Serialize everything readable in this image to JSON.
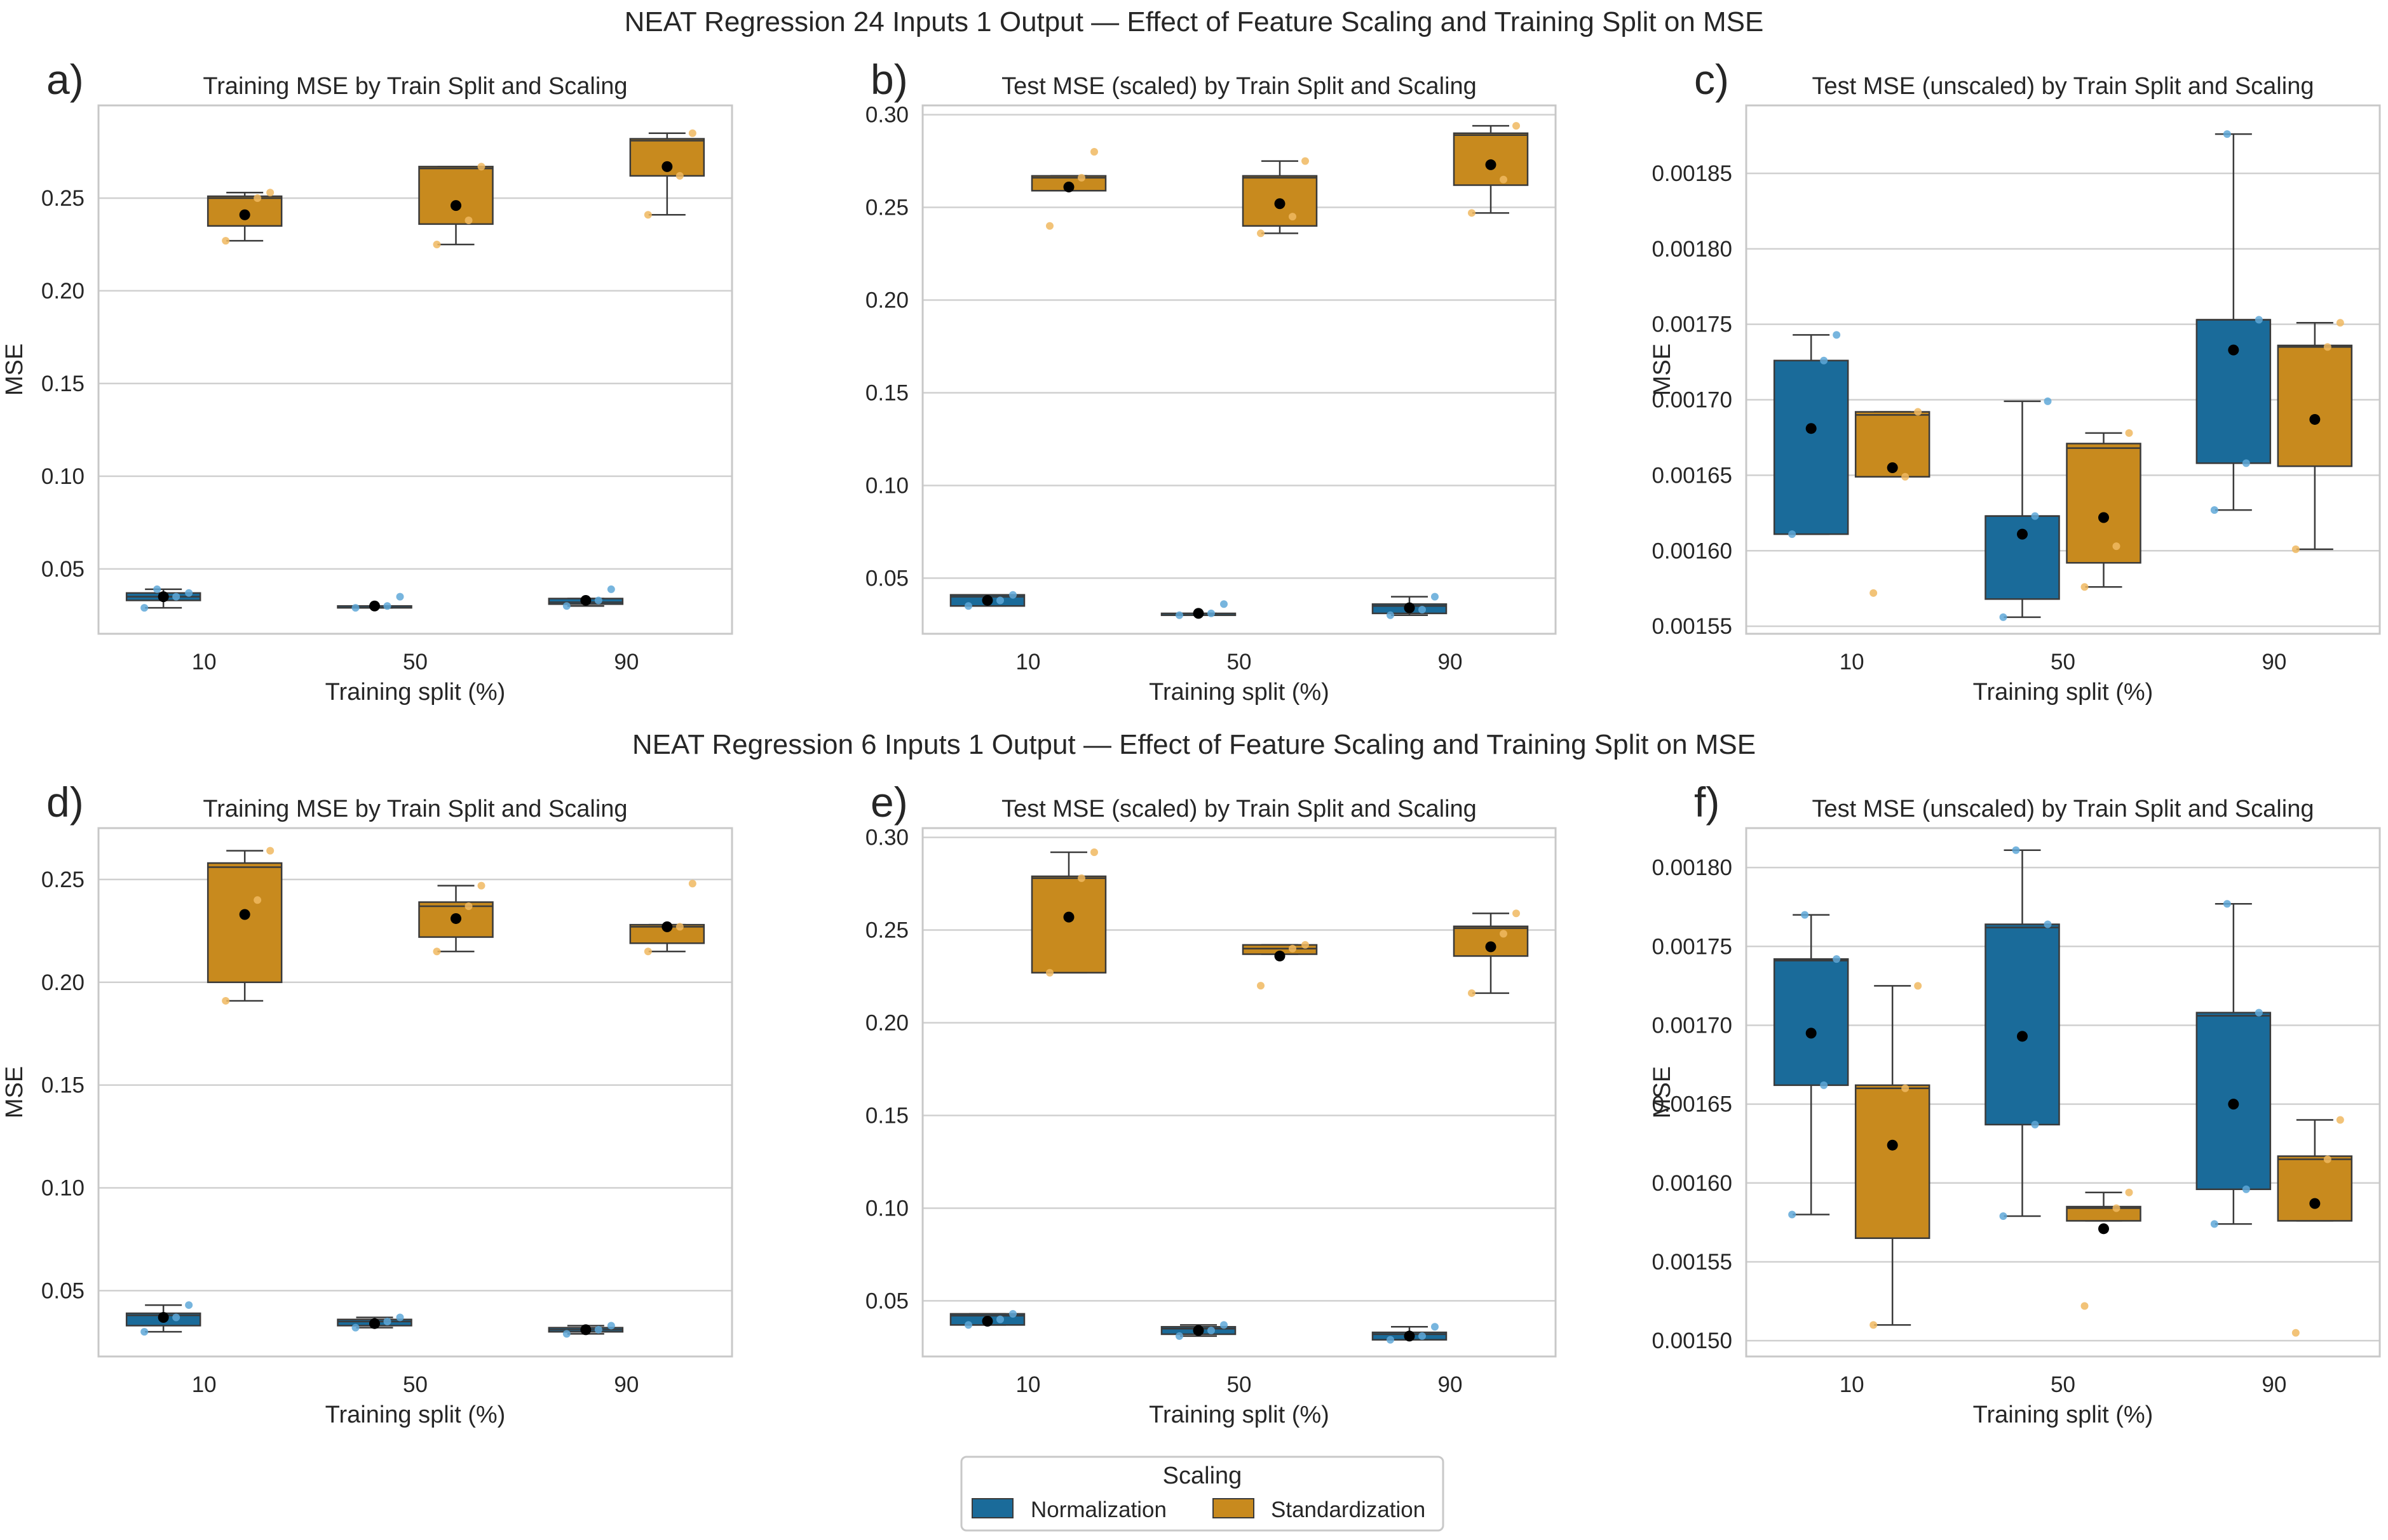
{
  "colors": {
    "normalization": "#1a6b9a",
    "standardization": "#c88a1e",
    "normalization_point": "#5fa8d8",
    "standardization_point": "#f0b860",
    "mean": "#000000"
  },
  "suptitles": [
    "NEAT Regression 24 Inputs 1 Output — Effect of Feature Scaling and Training Split on MSE",
    "NEAT Regression 6 Inputs 1 Output — Effect of Feature Scaling and Training Split on MSE"
  ],
  "legend": {
    "title": "Scaling",
    "entries": [
      "Normalization",
      "Standardization"
    ]
  },
  "chart_data": [
    {
      "type": "box",
      "panel": "a)",
      "title": "Training MSE by Train Split and Scaling",
      "xlabel": "Training split (%)",
      "ylabel": "MSE",
      "categories": [
        "10",
        "50",
        "90"
      ],
      "ylim": [
        0.015,
        0.3
      ],
      "yticks": [
        0.05,
        0.1,
        0.15,
        0.2,
        0.25
      ],
      "tick_labels": [
        "0.05",
        "0.10",
        "0.15",
        "0.20",
        "0.25"
      ],
      "series": [
        {
          "name": "Normalization",
          "boxes": [
            {
              "whislo": 0.029,
              "q1": 0.033,
              "med": 0.035,
              "q3": 0.037,
              "whishi": 0.039,
              "mean": 0.035,
              "points": [
                0.029,
                0.035,
                0.037,
                0.039
              ]
            },
            {
              "whislo": 0.029,
              "q1": 0.029,
              "med": 0.03,
              "q3": 0.03,
              "whishi": 0.03,
              "mean": 0.03,
              "points": [
                0.029,
                0.03,
                0.035
              ]
            },
            {
              "whislo": 0.03,
              "q1": 0.031,
              "med": 0.032,
              "q3": 0.034,
              "whishi": 0.034,
              "mean": 0.033,
              "points": [
                0.03,
                0.033,
                0.039
              ]
            }
          ]
        },
        {
          "name": "Standardization",
          "boxes": [
            {
              "whislo": 0.227,
              "q1": 0.235,
              "med": 0.25,
              "q3": 0.251,
              "whishi": 0.253,
              "mean": 0.241,
              "points": [
                0.227,
                0.25,
                0.253
              ]
            },
            {
              "whislo": 0.225,
              "q1": 0.236,
              "med": 0.266,
              "q3": 0.267,
              "whishi": 0.267,
              "mean": 0.246,
              "points": [
                0.225,
                0.238,
                0.267
              ]
            },
            {
              "whislo": 0.241,
              "q1": 0.262,
              "med": 0.281,
              "q3": 0.282,
              "whishi": 0.285,
              "mean": 0.267,
              "points": [
                0.241,
                0.262,
                0.285
              ]
            }
          ]
        }
      ]
    },
    {
      "type": "box",
      "panel": "b)",
      "title": "Test MSE (scaled) by Train Split and Scaling",
      "xlabel": "Training split (%)",
      "ylabel": "",
      "categories": [
        "10",
        "50",
        "90"
      ],
      "ylim": [
        0.02,
        0.305
      ],
      "yticks": [
        0.05,
        0.1,
        0.15,
        0.2,
        0.25,
        0.3
      ],
      "tick_labels": [
        "0.05",
        "0.10",
        "0.15",
        "0.20",
        "0.25",
        "0.30"
      ],
      "series": [
        {
          "name": "Normalization",
          "boxes": [
            {
              "whislo": 0.035,
              "q1": 0.035,
              "med": 0.04,
              "q3": 0.041,
              "whishi": 0.041,
              "mean": 0.038,
              "points": [
                0.035,
                0.038,
                0.041
              ]
            },
            {
              "whislo": 0.03,
              "q1": 0.03,
              "med": 0.03,
              "q3": 0.031,
              "whishi": 0.031,
              "mean": 0.031,
              "points": [
                0.03,
                0.031,
                0.036
              ]
            },
            {
              "whislo": 0.03,
              "q1": 0.031,
              "med": 0.035,
              "q3": 0.036,
              "whishi": 0.04,
              "mean": 0.034,
              "points": [
                0.03,
                0.033,
                0.04
              ]
            }
          ]
        },
        {
          "name": "Standardization",
          "boxes": [
            {
              "whislo": 0.259,
              "q1": 0.259,
              "med": 0.266,
              "q3": 0.267,
              "whishi": 0.267,
              "mean": 0.261,
              "points": [
                0.24,
                0.266,
                0.28
              ]
            },
            {
              "whislo": 0.236,
              "q1": 0.24,
              "med": 0.266,
              "q3": 0.267,
              "whishi": 0.275,
              "mean": 0.252,
              "points": [
                0.236,
                0.245,
                0.275
              ]
            },
            {
              "whislo": 0.247,
              "q1": 0.262,
              "med": 0.289,
              "q3": 0.29,
              "whishi": 0.294,
              "mean": 0.273,
              "points": [
                0.247,
                0.265,
                0.294
              ]
            }
          ]
        }
      ]
    },
    {
      "type": "box",
      "panel": "c)",
      "title": "Test MSE (unscaled) by Train Split and Scaling",
      "xlabel": "Training split (%)",
      "ylabel": "MSE",
      "categories": [
        "10",
        "50",
        "90"
      ],
      "ylim": [
        0.001545,
        0.001895
      ],
      "yticks": [
        0.00155,
        0.0016,
        0.00165,
        0.0017,
        0.00175,
        0.0018,
        0.00185
      ],
      "tick_labels": [
        "0.00155",
        "0.00160",
        "0.00165",
        "0.00170",
        "0.00175",
        "0.00180",
        "0.00185"
      ],
      "series": [
        {
          "name": "Normalization",
          "boxes": [
            {
              "whislo": 0.001611,
              "q1": 0.001611,
              "med": 0.001726,
              "q3": 0.001726,
              "whishi": 0.001743,
              "mean": 0.001681,
              "points": [
                0.001611,
                0.001726,
                0.001743
              ]
            },
            {
              "whislo": 0.001556,
              "q1": 0.001568,
              "med": 0.001623,
              "q3": 0.001623,
              "whishi": 0.001699,
              "mean": 0.001611,
              "points": [
                0.001556,
                0.001623,
                0.001699
              ]
            },
            {
              "whislo": 0.001627,
              "q1": 0.001658,
              "med": 0.001753,
              "q3": 0.001753,
              "whishi": 0.001876,
              "mean": 0.001733,
              "points": [
                0.001627,
                0.001658,
                0.001753,
                0.001876
              ]
            }
          ]
        },
        {
          "name": "Standardization",
          "boxes": [
            {
              "whislo": 0.001649,
              "q1": 0.001649,
              "med": 0.00169,
              "q3": 0.001692,
              "whishi": 0.001692,
              "mean": 0.001655,
              "points": [
                0.001572,
                0.001649,
                0.001692
              ]
            },
            {
              "whislo": 0.001576,
              "q1": 0.001592,
              "med": 0.001668,
              "q3": 0.001671,
              "whishi": 0.001678,
              "mean": 0.001622,
              "points": [
                0.001576,
                0.001603,
                0.001678
              ]
            },
            {
              "whislo": 0.001601,
              "q1": 0.001656,
              "med": 0.001735,
              "q3": 0.001736,
              "whishi": 0.001751,
              "mean": 0.001687,
              "points": [
                0.001601,
                0.001735,
                0.001751
              ]
            }
          ]
        }
      ]
    },
    {
      "type": "box",
      "panel": "d)",
      "title": "Training MSE by Train Split and Scaling",
      "xlabel": "Training split (%)",
      "ylabel": "MSE",
      "categories": [
        "10",
        "50",
        "90"
      ],
      "ylim": [
        0.018,
        0.275
      ],
      "yticks": [
        0.05,
        0.1,
        0.15,
        0.2,
        0.25
      ],
      "tick_labels": [
        "0.05",
        "0.10",
        "0.15",
        "0.20",
        "0.25"
      ],
      "series": [
        {
          "name": "Normalization",
          "boxes": [
            {
              "whislo": 0.03,
              "q1": 0.033,
              "med": 0.038,
              "q3": 0.039,
              "whishi": 0.043,
              "mean": 0.037,
              "points": [
                0.03,
                0.037,
                0.043
              ]
            },
            {
              "whislo": 0.032,
              "q1": 0.033,
              "med": 0.035,
              "q3": 0.036,
              "whishi": 0.037,
              "mean": 0.034,
              "points": [
                0.032,
                0.035,
                0.037
              ]
            },
            {
              "whislo": 0.029,
              "q1": 0.03,
              "med": 0.031,
              "q3": 0.032,
              "whishi": 0.033,
              "mean": 0.031,
              "points": [
                0.029,
                0.031,
                0.033
              ]
            }
          ]
        },
        {
          "name": "Standardization",
          "boxes": [
            {
              "whislo": 0.191,
              "q1": 0.2,
              "med": 0.256,
              "q3": 0.258,
              "whishi": 0.264,
              "mean": 0.233,
              "points": [
                0.191,
                0.24,
                0.264
              ]
            },
            {
              "whislo": 0.215,
              "q1": 0.222,
              "med": 0.237,
              "q3": 0.239,
              "whishi": 0.247,
              "mean": 0.231,
              "points": [
                0.215,
                0.237,
                0.247
              ]
            },
            {
              "whislo": 0.215,
              "q1": 0.219,
              "med": 0.227,
              "q3": 0.228,
              "whishi": 0.228,
              "mean": 0.227,
              "points": [
                0.215,
                0.227,
                0.248
              ]
            }
          ]
        }
      ]
    },
    {
      "type": "box",
      "panel": "e)",
      "title": "Test MSE (scaled) by Train Split and Scaling",
      "xlabel": "Training split (%)",
      "ylabel": "",
      "categories": [
        "10",
        "50",
        "90"
      ],
      "ylim": [
        0.02,
        0.305
      ],
      "yticks": [
        0.05,
        0.1,
        0.15,
        0.2,
        0.25,
        0.3
      ],
      "tick_labels": [
        "0.05",
        "0.10",
        "0.15",
        "0.20",
        "0.25",
        "0.30"
      ],
      "series": [
        {
          "name": "Normalization",
          "boxes": [
            {
              "whislo": 0.037,
              "q1": 0.037,
              "med": 0.042,
              "q3": 0.043,
              "whishi": 0.043,
              "mean": 0.039,
              "points": [
                0.037,
                0.04,
                0.043
              ]
            },
            {
              "whislo": 0.031,
              "q1": 0.032,
              "med": 0.035,
              "q3": 0.036,
              "whishi": 0.037,
              "mean": 0.034,
              "points": [
                0.031,
                0.034,
                0.037
              ]
            },
            {
              "whislo": 0.029,
              "q1": 0.029,
              "med": 0.032,
              "q3": 0.033,
              "whishi": 0.036,
              "mean": 0.031,
              "points": [
                0.029,
                0.031,
                0.036
              ]
            }
          ]
        },
        {
          "name": "Standardization",
          "boxes": [
            {
              "whislo": 0.227,
              "q1": 0.227,
              "med": 0.278,
              "q3": 0.279,
              "whishi": 0.292,
              "mean": 0.257,
              "points": [
                0.227,
                0.278,
                0.292
              ]
            },
            {
              "whislo": 0.237,
              "q1": 0.237,
              "med": 0.24,
              "q3": 0.242,
              "whishi": 0.242,
              "mean": 0.236,
              "points": [
                0.22,
                0.24,
                0.242
              ]
            },
            {
              "whislo": 0.216,
              "q1": 0.236,
              "med": 0.251,
              "q3": 0.252,
              "whishi": 0.259,
              "mean": 0.241,
              "points": [
                0.216,
                0.248,
                0.259
              ]
            }
          ]
        }
      ]
    },
    {
      "type": "box",
      "panel": "f)",
      "title": "Test MSE (unscaled) by Train Split and Scaling",
      "xlabel": "Training split (%)",
      "ylabel": "MSE",
      "categories": [
        "10",
        "50",
        "90"
      ],
      "ylim": [
        0.00149,
        0.001825
      ],
      "yticks": [
        0.0015,
        0.00155,
        0.0016,
        0.00165,
        0.0017,
        0.00175,
        0.0018
      ],
      "tick_labels": [
        "0.00150",
        "0.00155",
        "0.00160",
        "0.00165",
        "0.00170",
        "0.00175",
        "0.00180"
      ],
      "series": [
        {
          "name": "Normalization",
          "boxes": [
            {
              "whislo": 0.00158,
              "q1": 0.001662,
              "med": 0.001741,
              "q3": 0.001742,
              "whishi": 0.00177,
              "mean": 0.001695,
              "points": [
                0.00158,
                0.001662,
                0.001742,
                0.00177
              ]
            },
            {
              "whislo": 0.001579,
              "q1": 0.001637,
              "med": 0.001762,
              "q3": 0.001764,
              "whishi": 0.001811,
              "mean": 0.001693,
              "points": [
                0.001579,
                0.001637,
                0.001764,
                0.001811
              ]
            },
            {
              "whislo": 0.001574,
              "q1": 0.001596,
              "med": 0.001706,
              "q3": 0.001708,
              "whishi": 0.001777,
              "mean": 0.00165,
              "points": [
                0.001574,
                0.001596,
                0.001708,
                0.001777
              ]
            }
          ]
        },
        {
          "name": "Standardization",
          "boxes": [
            {
              "whislo": 0.00151,
              "q1": 0.001565,
              "med": 0.00166,
              "q3": 0.001662,
              "whishi": 0.001725,
              "mean": 0.001624,
              "points": [
                0.00151,
                0.00166,
                0.001725
              ]
            },
            {
              "whislo": 0.001576,
              "q1": 0.001576,
              "med": 0.001584,
              "q3": 0.001585,
              "whishi": 0.001594,
              "mean": 0.001571,
              "points": [
                0.001522,
                0.001584,
                0.001594
              ]
            },
            {
              "whislo": 0.001576,
              "q1": 0.001576,
              "med": 0.001615,
              "q3": 0.001617,
              "whishi": 0.00164,
              "mean": 0.001587,
              "points": [
                0.001505,
                0.001615,
                0.00164
              ]
            }
          ]
        }
      ]
    }
  ]
}
